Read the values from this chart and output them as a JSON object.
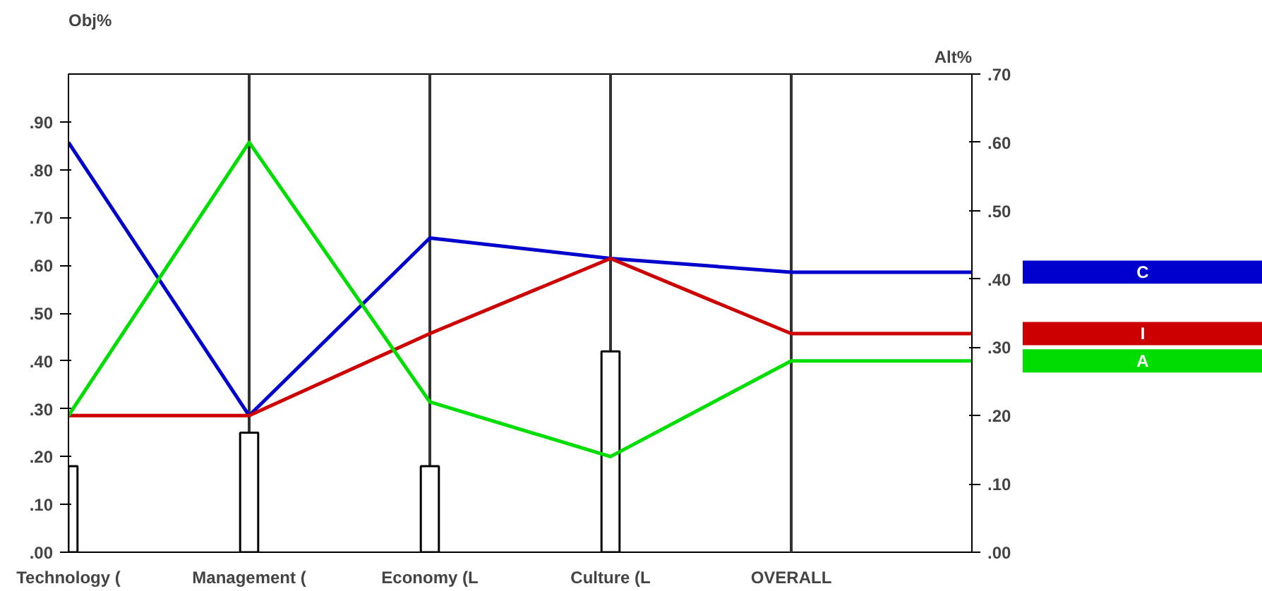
{
  "chart_data": {
    "type": "line",
    "ylabel": "Obj%",
    "y2label": "Alt%",
    "categories": [
      "Technology (",
      "Management (",
      "Economy (L",
      "Culture (L",
      "OVERALL",
      null
    ],
    "ylim": [
      0,
      1.0
    ],
    "yticks": [
      {
        "value": 0,
        "label": ".00"
      },
      {
        "value": 0.1,
        "label": ".10"
      },
      {
        "value": 0.2,
        "label": ".20"
      },
      {
        "value": 0.3,
        "label": ".30"
      },
      {
        "value": 0.4,
        "label": ".40"
      },
      {
        "value": 0.5,
        "label": ".50"
      },
      {
        "value": 0.6,
        "label": ".60"
      },
      {
        "value": 0.7,
        "label": ".70"
      },
      {
        "value": 0.8,
        "label": ".80"
      },
      {
        "value": 0.9,
        "label": ".90"
      }
    ],
    "y2lim": [
      0,
      0.7
    ],
    "y2ticks": [
      {
        "value": 0,
        "label": ".00"
      },
      {
        "value": 0.1,
        "label": ".10"
      },
      {
        "value": 0.2,
        "label": ".20"
      },
      {
        "value": 0.3,
        "label": ".30"
      },
      {
        "value": 0.4,
        "label": ".40"
      },
      {
        "value": 0.5,
        "label": ".50"
      },
      {
        "value": 0.6,
        "label": ".60"
      },
      {
        "value": 0.7,
        "label": ".70"
      }
    ],
    "grid": "x",
    "legend": "right",
    "series": [
      {
        "type": "bar",
        "color": "#ffffff",
        "values": [
          0.18,
          0.25,
          0.18,
          0.42,
          null,
          null
        ]
      },
      {
        "name": "C",
        "color": "#0000cc",
        "axis": "y2",
        "values": [
          0.6,
          0.2,
          0.46,
          0.43,
          0.41,
          0.41
        ]
      },
      {
        "name": "I",
        "color": "#cc0000",
        "axis": "y2",
        "values": [
          0.2,
          0.2,
          0.32,
          0.43,
          0.32,
          0.32
        ]
      },
      {
        "name": "A",
        "color": "#00dd00",
        "axis": "y2",
        "values": [
          0.2,
          0.6,
          0.22,
          0.14,
          0.28,
          0.28
        ]
      }
    ]
  }
}
